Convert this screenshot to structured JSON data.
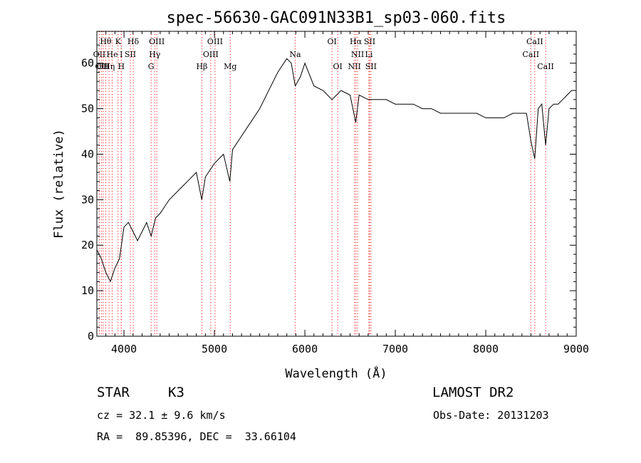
{
  "chart_data": {
    "type": "line",
    "title": "spec-56630-GAC091N33B1_sp03-060.fits",
    "xlabel": "Wavelength (Å)",
    "ylabel": "Flux (relative)",
    "xlim": [
      3700,
      9000
    ],
    "ylim": [
      0,
      67
    ],
    "xticks": [
      4000,
      5000,
      6000,
      7000,
      8000,
      9000
    ],
    "yticks": [
      0,
      10,
      20,
      30,
      40,
      50,
      60
    ],
    "grid": false,
    "line_color": "#000000",
    "marker_color": "#ff0000",
    "series": [
      {
        "x": [
          3700,
          3750,
          3800,
          3850,
          3900,
          3950,
          4000,
          4050,
          4100,
          4150,
          4200,
          4250,
          4300,
          4350,
          4400,
          4500,
          4600,
          4700,
          4800,
          4860,
          4900,
          5000,
          5100,
          5170,
          5200,
          5300,
          5400,
          5500,
          5600,
          5700,
          5800,
          5850,
          5893,
          5950,
          6000,
          6100,
          6200,
          6300,
          6400,
          6500,
          6563,
          6600,
          6700,
          6800,
          6900,
          7000,
          7100,
          7200,
          7300,
          7400,
          7500,
          7600,
          7700,
          7800,
          7900,
          8000,
          8100,
          8200,
          8300,
          8400,
          8450,
          8498,
          8542,
          8580,
          8620,
          8662,
          8700,
          8750,
          8800,
          8850,
          8900,
          8950,
          9000
        ],
        "y": [
          19,
          17,
          14,
          12,
          15,
          17,
          24,
          25,
          23,
          21,
          23,
          25,
          22,
          26,
          27,
          30,
          32,
          34,
          36,
          30,
          35,
          38,
          40,
          34,
          41,
          44,
          47,
          50,
          54,
          58,
          61,
          60,
          55,
          57,
          60,
          55,
          54,
          52,
          54,
          53,
          47,
          53,
          52,
          52,
          52,
          51,
          51,
          51,
          50,
          50,
          49,
          49,
          49,
          49,
          49,
          48,
          48,
          48,
          49,
          49,
          49,
          43,
          39,
          50,
          51,
          42,
          50,
          51,
          51,
          52,
          53,
          54,
          54
        ]
      }
    ],
    "line_markers": [
      {
        "x": 3727,
        "row": 1,
        "label": "OII"
      },
      {
        "x": 3750,
        "row": 2,
        "label": "OII"
      },
      {
        "x": 3770,
        "row": 2,
        "label": "OII"
      },
      {
        "x": 3798,
        "row": 0,
        "label": "Hθ"
      },
      {
        "x": 3835,
        "row": 2,
        "label": "Hη"
      },
      {
        "x": 3870,
        "row": 1,
        "label": "He"
      },
      {
        "x": 3934,
        "row": 0,
        "label": "K"
      },
      {
        "x": 3970,
        "row": 2,
        "label": "H"
      },
      {
        "x": 3970,
        "row": 1,
        "label": "I"
      },
      {
        "x": 4070,
        "row": 1,
        "label": "SII"
      },
      {
        "x": 4102,
        "row": 0,
        "label": "Hδ"
      },
      {
        "x": 4300,
        "row": 2,
        "label": "G"
      },
      {
        "x": 4340,
        "row": 1,
        "label": "Hγ"
      },
      {
        "x": 4363,
        "row": 0,
        "label": "OIII"
      },
      {
        "x": 4861,
        "row": 2,
        "label": "Hβ"
      },
      {
        "x": 4959,
        "row": 1,
        "label": "OIII"
      },
      {
        "x": 5007,
        "row": 0,
        "label": "OIII"
      },
      {
        "x": 5175,
        "row": 2,
        "label": "Mg"
      },
      {
        "x": 5893,
        "row": 1,
        "label": "Na"
      },
      {
        "x": 6300,
        "row": 0,
        "label": "OI"
      },
      {
        "x": 6363,
        "row": 2,
        "label": "OI"
      },
      {
        "x": 6548,
        "row": 2,
        "label": "NII"
      },
      {
        "x": 6563,
        "row": 0,
        "label": "Hα"
      },
      {
        "x": 6583,
        "row": 1,
        "label": "NII"
      },
      {
        "x": 6716,
        "row": 0,
        "label": "SII"
      },
      {
        "x": 6731,
        "row": 2,
        "label": "SII"
      },
      {
        "x": 6708,
        "row": 1,
        "label": "Li"
      },
      {
        "x": 8498,
        "row": 1,
        "label": "CaII"
      },
      {
        "x": 8542,
        "row": 0,
        "label": "CaII"
      },
      {
        "x": 8662,
        "row": 2,
        "label": "CaII"
      }
    ]
  },
  "info": {
    "class_label": "STAR",
    "subclass": "K3",
    "survey": "LAMOST DR2",
    "cz_text": "cz = 32.1 ± 9.6 km/s",
    "obs_date": "Obs-Date: 20131203",
    "coords": "RA =  89.85396, DEC =  33.66104"
  }
}
